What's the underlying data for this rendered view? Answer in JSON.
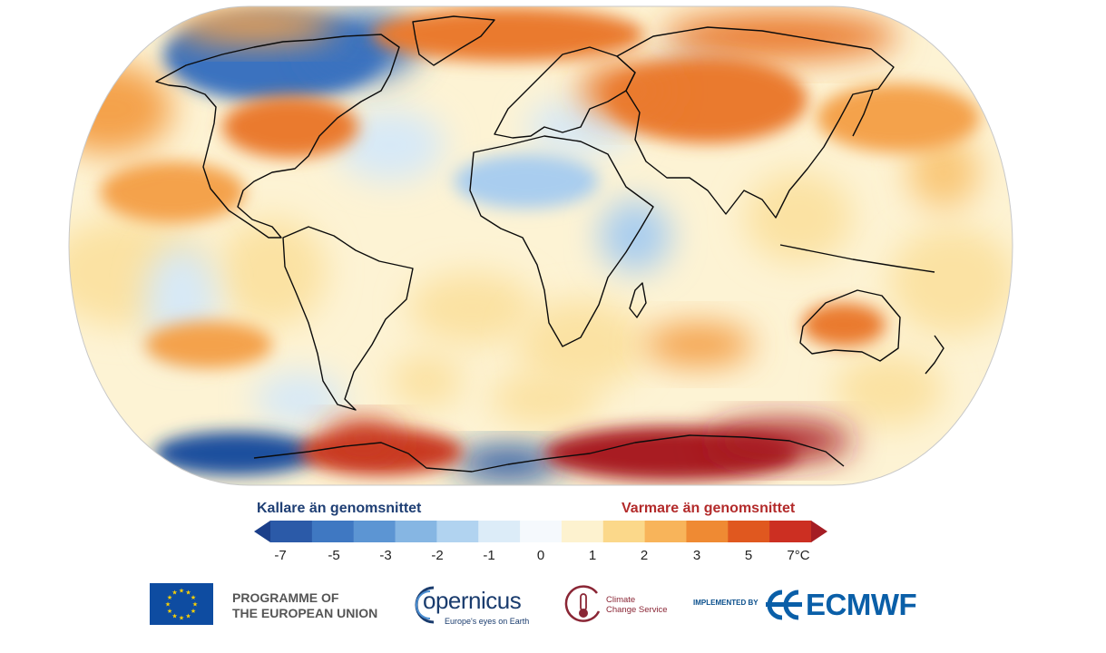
{
  "map": {
    "projection": "robinson",
    "colors": {
      "coast": "#0b0b0b",
      "border": "#9a9a9a",
      "base": "#fdf3d4"
    },
    "anomaly_regions": [
      {
        "name": "greenland-arctic-canada",
        "level": -4
      },
      {
        "name": "alaska-pacific",
        "level": 3
      },
      {
        "name": "north-atlantic-greenland-sea",
        "level": 4
      },
      {
        "name": "eastern-north-america",
        "level": 4
      },
      {
        "name": "central-asia",
        "level": 4
      },
      {
        "name": "north-pacific-east-asia",
        "level": 3
      },
      {
        "name": "north-africa-sahara",
        "level": -2
      },
      {
        "name": "west-antarctica-coast",
        "level": -5
      },
      {
        "name": "antarctic-peninsula-weddell",
        "level": 6
      },
      {
        "name": "east-antarctica",
        "level": 7
      },
      {
        "name": "south-pacific",
        "level": 3
      },
      {
        "name": "australia-interior",
        "level": 4
      }
    ]
  },
  "legend": {
    "cold_label": "Kallare än genomsnittet",
    "warm_label": "Varmare än genomsnittet",
    "ticks": [
      "-7",
      "-5",
      "-3",
      "-2",
      "-1",
      "0",
      "1",
      "2",
      "3",
      "5",
      "7°C"
    ],
    "colors": [
      "#1b3f8a",
      "#2b5aa8",
      "#3f78c2",
      "#5c95d3",
      "#86b6e3",
      "#b1d3f0",
      "#dcecf8",
      "#f5f9fd",
      "#fdf2cf",
      "#fbd88a",
      "#f8b45a",
      "#ef8a33",
      "#e0581f",
      "#cc2f22",
      "#a51d24"
    ],
    "cold_color": "#1f3f74",
    "warm_color": "#b32b2b"
  },
  "logos": {
    "eu": {
      "line1": "PROGRAMME OF",
      "line2": "THE EUROPEAN UNION"
    },
    "copernicus": {
      "word": "opernicus",
      "tagline": "Europe's eyes on Earth"
    },
    "c3s": {
      "line1": "Climate",
      "line2": "Change Service"
    },
    "implemented_by": "IMPLEMENTED BY",
    "ecmwf": "ECMWF"
  }
}
